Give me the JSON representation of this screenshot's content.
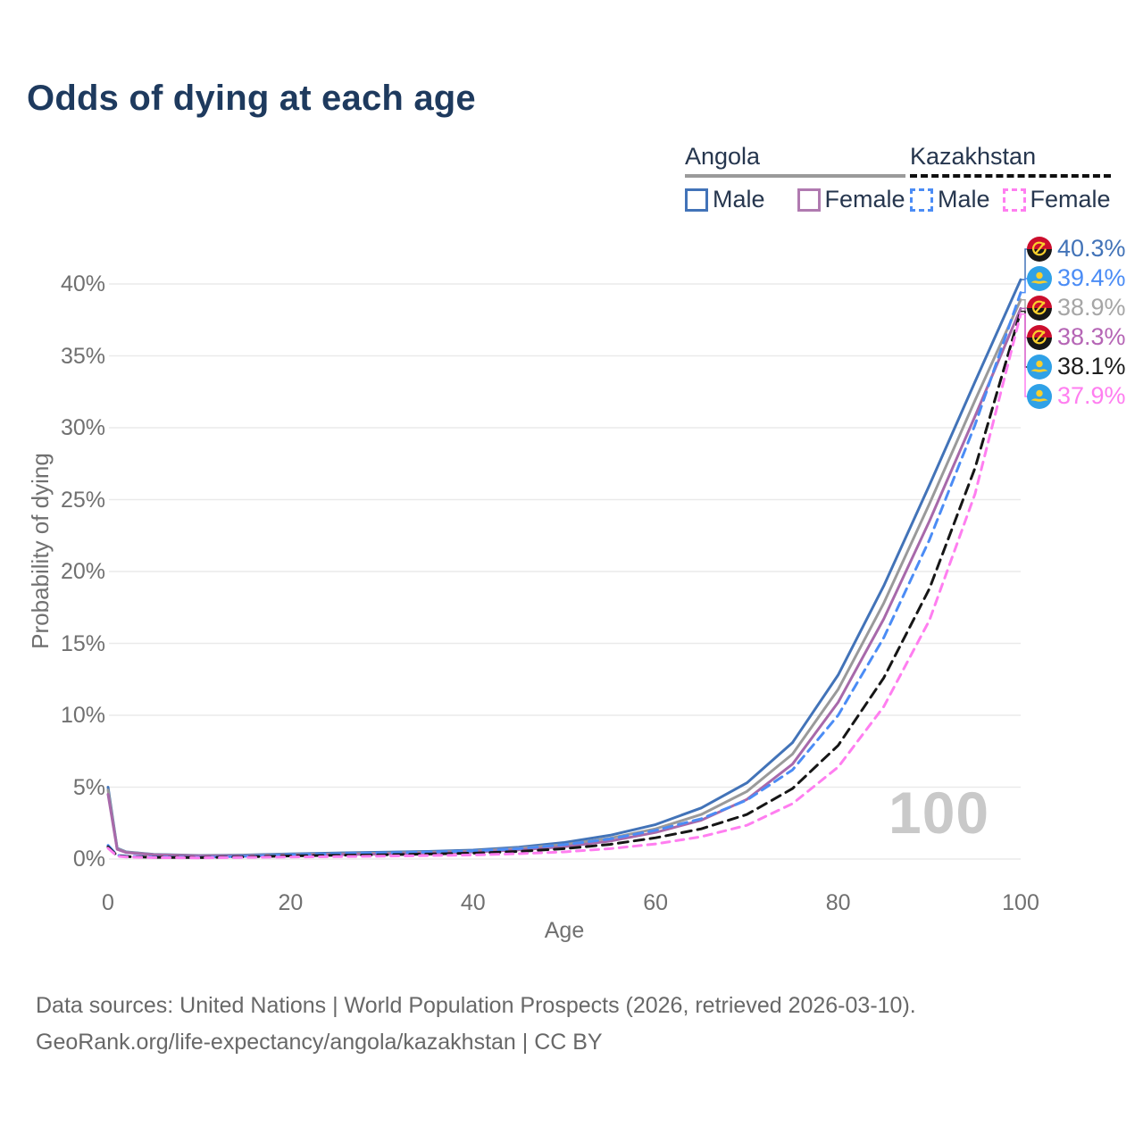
{
  "header": {
    "title": "Odds of dying at each age"
  },
  "legend": {
    "groups": [
      {
        "title": "Angola",
        "line_style": "solid",
        "underline_color": "#9a9a9a",
        "items": [
          {
            "label": "Male",
            "color": "#4273b8"
          },
          {
            "label": "Female",
            "color": "#b07ab0"
          }
        ]
      },
      {
        "title": "Kazakhstan",
        "line_style": "dashed",
        "underline_color": "#101010",
        "items": [
          {
            "label": "Male",
            "color": "#4b8cf5"
          },
          {
            "label": "Female",
            "color": "#ff7ef0"
          }
        ]
      }
    ]
  },
  "chart_data": {
    "type": "line",
    "title": "Odds of dying at each age",
    "xlabel": "Age",
    "ylabel": "Probability of dying",
    "xlim": [
      0,
      100
    ],
    "ylim": [
      0,
      40
    ],
    "x_ticks": [
      0,
      20,
      40,
      60,
      80,
      100
    ],
    "y_ticks": [
      0,
      5,
      10,
      15,
      20,
      25,
      30,
      35,
      40
    ],
    "y_tick_suffix": "%",
    "grid": "horizontal",
    "legend_position": "top-right",
    "watermark": "100",
    "ages": [
      0,
      1,
      2,
      5,
      10,
      15,
      20,
      25,
      30,
      35,
      40,
      45,
      50,
      55,
      60,
      65,
      70,
      75,
      80,
      85,
      90,
      95,
      100
    ],
    "series": [
      {
        "name": "Angola Male",
        "country": "angola",
        "sex": "male",
        "color": "#4273b8",
        "dash": "",
        "values": [
          5.0,
          0.75,
          0.5,
          0.33,
          0.25,
          0.28,
          0.36,
          0.42,
          0.47,
          0.53,
          0.62,
          0.82,
          1.15,
          1.65,
          2.4,
          3.55,
          5.3,
          8.1,
          12.8,
          19.0,
          26.0,
          33.2,
          40.3
        ]
      },
      {
        "name": "Angola Both sexes",
        "country": "angola",
        "sex": "both",
        "color": "#9a9a9a",
        "dash": "",
        "values": [
          4.8,
          0.72,
          0.48,
          0.31,
          0.23,
          0.25,
          0.31,
          0.36,
          0.41,
          0.47,
          0.55,
          0.75,
          1.0,
          1.45,
          2.1,
          3.1,
          4.7,
          7.3,
          11.8,
          17.8,
          24.7,
          31.9,
          38.9
        ]
      },
      {
        "name": "Angola Female",
        "country": "angola",
        "sex": "female",
        "color": "#a869aa",
        "dash": "",
        "values": [
          4.5,
          0.68,
          0.45,
          0.29,
          0.21,
          0.22,
          0.27,
          0.31,
          0.35,
          0.41,
          0.49,
          0.64,
          0.86,
          1.25,
          1.85,
          2.7,
          4.15,
          6.6,
          10.9,
          16.7,
          23.5,
          30.8,
          38.3
        ]
      },
      {
        "name": "Kazakhstan Male",
        "country": "kazakhstan",
        "sex": "male",
        "color": "#4b8cf5",
        "dash": "10 7",
        "values": [
          0.95,
          0.26,
          0.2,
          0.15,
          0.12,
          0.19,
          0.3,
          0.36,
          0.42,
          0.48,
          0.56,
          0.72,
          1.0,
          1.4,
          2.0,
          2.8,
          4.1,
          6.2,
          10.0,
          15.4,
          22.2,
          30.2,
          39.4
        ]
      },
      {
        "name": "Kazakhstan Both sexes",
        "country": "kazakhstan",
        "sex": "both",
        "color": "#161616",
        "dash": "11 7",
        "values": [
          0.85,
          0.23,
          0.17,
          0.12,
          0.1,
          0.15,
          0.22,
          0.26,
          0.3,
          0.35,
          0.41,
          0.53,
          0.72,
          1.02,
          1.48,
          2.1,
          3.1,
          4.9,
          7.9,
          12.6,
          18.8,
          27.2,
          38.1
        ]
      },
      {
        "name": "Kazakhstan Female",
        "country": "kazakhstan",
        "sex": "female",
        "color": "#ff7ef0",
        "dash": "9 7",
        "values": [
          0.75,
          0.2,
          0.14,
          0.1,
          0.08,
          0.11,
          0.14,
          0.17,
          0.2,
          0.24,
          0.28,
          0.37,
          0.5,
          0.72,
          1.05,
          1.55,
          2.35,
          3.85,
          6.4,
          10.6,
          16.6,
          25.4,
          37.9
        ]
      }
    ],
    "end_labels": [
      {
        "country": "angola",
        "value": "40.3%",
        "color": "#4273b8",
        "series": 0
      },
      {
        "country": "kazakhstan",
        "value": "39.4%",
        "color": "#4b8cf5",
        "series": 3
      },
      {
        "country": "angola",
        "value": "38.9%",
        "color": "#a6a6a6",
        "series": 1
      },
      {
        "country": "angola",
        "value": "38.3%",
        "color": "#b565b5",
        "series": 2
      },
      {
        "country": "kazakhstan",
        "value": "38.1%",
        "color": "#1d1d1d",
        "series": 4
      },
      {
        "country": "kazakhstan",
        "value": "37.9%",
        "color": "#ff7ef0",
        "series": 5
      }
    ]
  },
  "footer": {
    "line1": "Data sources: United Nations | World Population Prospects (2026, retrieved 2026-03-10).",
    "line2": "GeoRank.org/life-expectancy/angola/kazakhstan | CC BY"
  }
}
